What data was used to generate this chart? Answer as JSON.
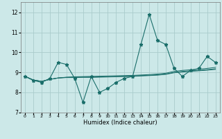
{
  "title": "",
  "xlabel": "Humidex (Indice chaleur)",
  "ylabel": "",
  "bg_color": "#cce8e8",
  "grid_color": "#aacccc",
  "line_color": "#1a6e6a",
  "xlim": [
    -0.5,
    23.5
  ],
  "ylim": [
    7,
    12.5
  ],
  "yticks": [
    7,
    8,
    9,
    10,
    11,
    12
  ],
  "xticks": [
    0,
    1,
    2,
    3,
    4,
    5,
    6,
    7,
    8,
    9,
    10,
    11,
    12,
    13,
    14,
    15,
    16,
    17,
    18,
    19,
    20,
    21,
    22,
    23
  ],
  "series": [
    [
      8.8,
      8.6,
      8.5,
      8.7,
      9.5,
      9.4,
      8.7,
      7.5,
      8.8,
      8.0,
      8.2,
      8.5,
      8.7,
      8.8,
      10.4,
      11.9,
      10.6,
      10.4,
      9.2,
      8.8,
      9.1,
      9.2,
      9.8,
      9.5
    ],
    [
      8.8,
      8.62,
      8.55,
      8.65,
      8.72,
      8.76,
      8.78,
      8.79,
      8.8,
      8.81,
      8.82,
      8.83,
      8.84,
      8.85,
      8.87,
      8.89,
      8.92,
      8.96,
      9.05,
      9.1,
      9.13,
      9.16,
      9.2,
      9.25
    ],
    [
      8.8,
      8.62,
      8.55,
      8.65,
      8.72,
      8.75,
      8.76,
      8.77,
      8.77,
      8.78,
      8.79,
      8.8,
      8.81,
      8.82,
      8.84,
      8.86,
      8.88,
      8.92,
      9.0,
      9.05,
      9.08,
      9.1,
      9.14,
      9.18
    ],
    [
      8.8,
      8.62,
      8.55,
      8.65,
      8.72,
      8.74,
      8.74,
      8.75,
      8.75,
      8.76,
      8.77,
      8.78,
      8.79,
      8.8,
      8.82,
      8.84,
      8.86,
      8.9,
      8.98,
      9.02,
      9.05,
      9.08,
      9.11,
      9.15
    ]
  ]
}
